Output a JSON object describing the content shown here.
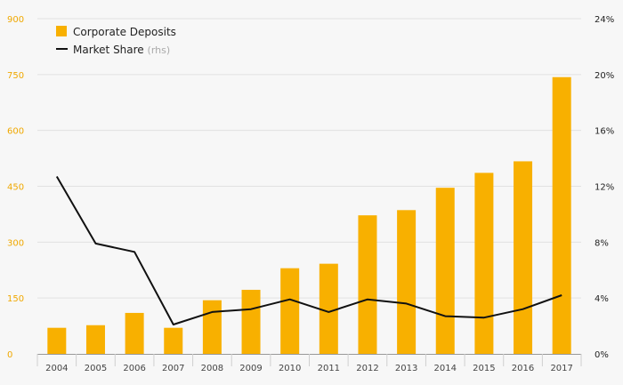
{
  "chart_data": {
    "type": "bar",
    "categories": [
      "2004",
      "2005",
      "2006",
      "2007",
      "2008",
      "2009",
      "2010",
      "2011",
      "2012",
      "2013",
      "2014",
      "2015",
      "2016",
      "2017"
    ],
    "series": [
      {
        "name": "Corporate Deposits",
        "type": "bar",
        "axis": "left",
        "color": "#f8b000",
        "values": [
          70,
          77,
          110,
          70,
          144,
          172,
          230,
          242,
          372,
          386,
          446,
          486,
          517,
          743
        ]
      },
      {
        "name": "Market Share",
        "type": "line",
        "axis": "right",
        "color": "#111111",
        "values": [
          12.7,
          7.9,
          7.3,
          2.1,
          3.0,
          3.2,
          3.9,
          3.0,
          3.9,
          3.6,
          2.7,
          2.6,
          3.2,
          4.2
        ]
      }
    ],
    "legend": [
      {
        "label": "Corporate Deposits",
        "note": ""
      },
      {
        "label": "Market Share",
        "note": "(rhs)"
      }
    ],
    "ylim": [
      0,
      900
    ],
    "y_ticks": [
      "0",
      "150",
      "300",
      "450",
      "600",
      "750",
      "900"
    ],
    "y2lim": [
      0,
      24
    ],
    "y2_ticks": [
      "0%",
      "4%",
      "8%",
      "12%",
      "16%",
      "20%",
      "24%"
    ],
    "grid": true,
    "legend_position": "top-left"
  }
}
